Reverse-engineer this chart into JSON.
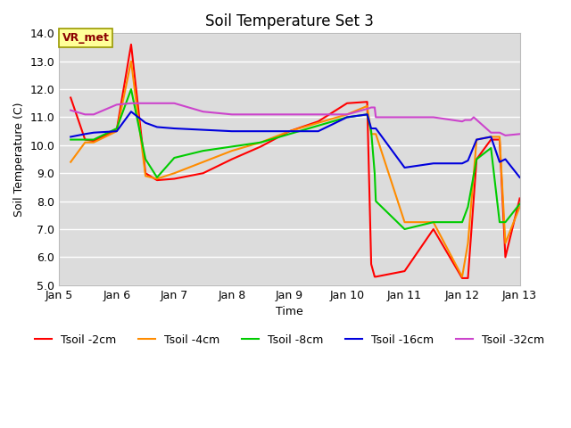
{
  "title": "Soil Temperature Set 3",
  "xlabel": "Time",
  "ylabel": "Soil Temperature (C)",
  "ylim": [
    5.0,
    14.0
  ],
  "yticks": [
    5.0,
    6.0,
    7.0,
    8.0,
    9.0,
    10.0,
    11.0,
    12.0,
    13.0,
    14.0
  ],
  "plot_bg_color": "#dcdcdc",
  "figure_bg_color": "#ffffff",
  "grid_color": "#ffffff",
  "annotation_text": "VR_met",
  "annotation_box_facecolor": "#ffff99",
  "annotation_box_edgecolor": "#999900",
  "annotation_text_color": "#8b0000",
  "series": {
    "Tsoil -2cm": {
      "color": "#ff0000",
      "x": [
        5.2,
        5.45,
        5.6,
        6.0,
        6.25,
        6.5,
        6.7,
        7.0,
        7.5,
        8.0,
        8.5,
        9.0,
        9.5,
        10.0,
        10.35,
        10.42,
        10.48,
        10.5,
        11.0,
        11.5,
        12.0,
        12.1,
        12.25,
        12.5,
        12.65,
        12.75,
        13.0
      ],
      "y": [
        11.7,
        10.2,
        10.15,
        10.55,
        13.6,
        9.0,
        8.75,
        8.8,
        9.0,
        9.5,
        9.95,
        10.5,
        10.85,
        11.5,
        11.55,
        5.75,
        5.3,
        5.3,
        5.5,
        7.0,
        5.25,
        5.25,
        9.5,
        10.2,
        10.2,
        6.0,
        8.1
      ]
    },
    "Tsoil -4cm": {
      "color": "#ff8c00",
      "x": [
        5.2,
        5.45,
        5.6,
        6.0,
        6.25,
        6.5,
        6.7,
        7.0,
        7.5,
        8.0,
        8.5,
        9.0,
        9.5,
        10.0,
        10.35,
        10.42,
        10.48,
        10.5,
        11.0,
        11.5,
        12.0,
        12.1,
        12.25,
        12.5,
        12.65,
        12.75,
        13.0
      ],
      "y": [
        9.4,
        10.1,
        10.1,
        10.5,
        13.0,
        8.9,
        8.8,
        9.0,
        9.4,
        9.8,
        10.1,
        10.5,
        10.8,
        11.1,
        11.4,
        10.4,
        10.4,
        10.4,
        7.25,
        7.25,
        5.3,
        6.5,
        10.2,
        10.3,
        10.3,
        6.5,
        7.8
      ]
    },
    "Tsoil -8cm": {
      "color": "#00cc00",
      "x": [
        5.2,
        5.45,
        5.6,
        6.0,
        6.25,
        6.5,
        6.7,
        7.0,
        7.5,
        8.0,
        8.5,
        9.0,
        9.5,
        10.0,
        10.35,
        10.42,
        10.48,
        10.5,
        11.0,
        11.5,
        12.0,
        12.1,
        12.25,
        12.5,
        12.65,
        12.75,
        13.0
      ],
      "y": [
        10.2,
        10.2,
        10.2,
        10.6,
        12.0,
        9.5,
        8.85,
        9.55,
        9.8,
        9.95,
        10.1,
        10.4,
        10.7,
        11.0,
        11.1,
        10.5,
        9.0,
        8.0,
        7.0,
        7.25,
        7.25,
        7.8,
        9.5,
        9.9,
        7.25,
        7.25,
        7.9
      ]
    },
    "Tsoil -16cm": {
      "color": "#0000dd",
      "x": [
        5.2,
        5.45,
        5.6,
        6.0,
        6.25,
        6.5,
        6.7,
        7.0,
        7.5,
        8.0,
        8.5,
        9.0,
        9.5,
        10.0,
        10.35,
        10.42,
        10.48,
        10.5,
        11.0,
        11.5,
        12.0,
        12.1,
        12.25,
        12.5,
        12.65,
        12.75,
        13.0
      ],
      "y": [
        10.3,
        10.4,
        10.45,
        10.5,
        11.2,
        10.8,
        10.65,
        10.6,
        10.55,
        10.5,
        10.5,
        10.5,
        10.5,
        11.0,
        11.1,
        10.6,
        10.6,
        10.6,
        9.2,
        9.35,
        9.35,
        9.45,
        10.2,
        10.3,
        9.4,
        9.5,
        8.85
      ]
    },
    "Tsoil -32cm": {
      "color": "#cc44cc",
      "x": [
        5.2,
        5.45,
        5.6,
        6.0,
        6.25,
        6.5,
        6.7,
        7.0,
        7.5,
        8.0,
        8.5,
        9.0,
        9.5,
        10.0,
        10.35,
        10.42,
        10.48,
        10.5,
        11.0,
        11.5,
        12.0,
        12.05,
        12.1,
        12.15,
        12.2,
        12.5,
        12.65,
        12.75,
        13.0
      ],
      "y": [
        11.25,
        11.1,
        11.1,
        11.45,
        11.5,
        11.5,
        11.5,
        11.5,
        11.2,
        11.1,
        11.1,
        11.1,
        11.1,
        11.1,
        11.3,
        11.35,
        11.35,
        11.0,
        11.0,
        11.0,
        10.85,
        10.9,
        10.9,
        10.9,
        11.0,
        10.45,
        10.45,
        10.35,
        10.4
      ]
    }
  },
  "xtick_positions": [
    5.0,
    6.0,
    7.0,
    8.0,
    9.0,
    10.0,
    11.0,
    12.0,
    13.0
  ],
  "xtick_labels": [
    "Jan 5",
    "Jan 6",
    "Jan 7",
    "Jan 8",
    "Jan 9",
    "Jan 10",
    "Jan 11",
    "Jan 12",
    "Jan 13"
  ],
  "xlim": [
    5.0,
    13.0
  ],
  "legend_labels": [
    "Tsoil -2cm",
    "Tsoil -4cm",
    "Tsoil -8cm",
    "Tsoil -16cm",
    "Tsoil -32cm"
  ],
  "legend_colors": [
    "#ff0000",
    "#ff8c00",
    "#00cc00",
    "#0000dd",
    "#cc44cc"
  ]
}
